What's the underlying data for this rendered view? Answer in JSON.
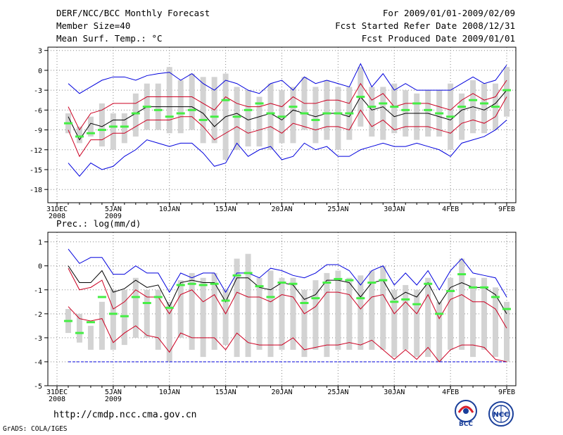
{
  "header": {
    "title": "DERF/NCC/BCC Monthly Forecast",
    "member_size": "Member Size=40",
    "period": "For 2009/01/01-2009/02/09",
    "fcst_started": "Fcst Started Refer Date 2008/12/31",
    "fcst_produced": "Fcst Produced Date 2009/01/01"
  },
  "footer": {
    "url": "http://cmdp.ncc.cma.gov.cn",
    "credit": "GrADS: COLA/IGES",
    "logo_left_text": "BCC",
    "logo_right_text": "NCC"
  },
  "colors": {
    "bar": "#d3d3d3",
    "green": "#44ee44",
    "blue": "#0000dd",
    "red": "#cc0022",
    "black": "#000000",
    "dash": "#0000dd"
  },
  "chart_data": [
    {
      "type": "line",
      "title": "Mean Surf. Temp.: °C",
      "x_tick_labels": [
        "31DEC",
        "5JAN",
        "10JAN",
        "15JAN",
        "20JAN",
        "25JAN",
        "30JAN",
        "4FEB",
        "9FEB"
      ],
      "x_tick_days": [
        0,
        5,
        10,
        15,
        20,
        25,
        30,
        35,
        40
      ],
      "x_sublabels": {
        "0": "2008",
        "5": "2009"
      },
      "ylim": [
        -20,
        3.5
      ],
      "yticks": [
        3,
        0,
        -3,
        -6,
        -9,
        -12,
        -15,
        -18
      ],
      "days": [
        1,
        2,
        3,
        4,
        5,
        6,
        7,
        8,
        9,
        10,
        11,
        12,
        13,
        14,
        15,
        16,
        17,
        18,
        19,
        20,
        21,
        22,
        23,
        24,
        25,
        26,
        27,
        28,
        29,
        30,
        31,
        32,
        33,
        34,
        35,
        36,
        37,
        38,
        39,
        40
      ],
      "box_top": [
        -6.5,
        -8.5,
        -7,
        -5,
        -6.5,
        -6.5,
        -3.5,
        -2,
        -2,
        0.5,
        -1.5,
        -0.5,
        -1,
        -1,
        -0.5,
        -2.5,
        -3,
        -4,
        -2,
        -3,
        -2.5,
        -1,
        -2.5,
        -1.5,
        -2.5,
        -2.5,
        0.5,
        -2.5,
        -2.5,
        -2,
        -3,
        -3.5,
        -3,
        -3,
        -2,
        -3.5,
        -1.5,
        -2,
        -2,
        0.5
      ],
      "box_bottom": [
        -9.5,
        -11,
        -10,
        -11.5,
        -12,
        -11,
        -10,
        -9,
        -9,
        -9.5,
        -9.5,
        -9,
        -11,
        -11,
        -13.5,
        -12,
        -11.5,
        -11.5,
        -12,
        -11,
        -11,
        -9,
        -11,
        -10.5,
        -12,
        -10.5,
        -8.5,
        -10,
        -10.5,
        -9.5,
        -10,
        -10.5,
        -10,
        -10,
        -12,
        -10.5,
        -9.5,
        -9.5,
        -9,
        -7
      ],
      "green": [
        -8,
        -10,
        -9.5,
        -9,
        -8.5,
        -8.5,
        -6.5,
        -5.5,
        -6,
        -7,
        -6.5,
        -6,
        -7.5,
        -7,
        -4.5,
        -7,
        -6,
        -5,
        -6.5,
        -7,
        -5.5,
        -6.5,
        -7.5,
        -6.5,
        -6.5,
        -6.5,
        -4,
        -5.5,
        -5,
        -5.5,
        -6,
        -5,
        -6,
        -6.5,
        -7,
        -5.5,
        -4.5,
        -5,
        -5.5,
        -3
      ],
      "blue_upper": [
        -2,
        -3.5,
        -2.5,
        -1.5,
        -1,
        -1,
        -1.5,
        -0.8,
        -0.5,
        -0.3,
        -1.5,
        -0.5,
        -2,
        -3,
        -1.5,
        -2,
        -3,
        -3.5,
        -2,
        -1.5,
        -3,
        -1,
        -2,
        -1.5,
        -2,
        -2.5,
        1,
        -2.5,
        -0.5,
        -3,
        -2,
        -3,
        -3,
        -3,
        -3,
        -2,
        -1,
        -2,
        -1.5,
        0.8
      ],
      "red_upper": [
        -5.5,
        -9,
        -6.5,
        -6,
        -5,
        -5,
        -5,
        -4,
        -4,
        -4,
        -4,
        -4,
        -5,
        -6,
        -4,
        -5,
        -5.5,
        -5.5,
        -5,
        -5.5,
        -4,
        -5,
        -5,
        -4.5,
        -4.5,
        -5,
        -2,
        -4.5,
        -3.5,
        -5.5,
        -5,
        -5,
        -5,
        -5.5,
        -6,
        -4.5,
        -3.5,
        -4.5,
        -4,
        -1.5
      ],
      "mean": [
        -7,
        -10.5,
        -8,
        -8.5,
        -7.5,
        -7.5,
        -6.5,
        -5.5,
        -5.5,
        -5.5,
        -5.5,
        -5.5,
        -6.5,
        -8.5,
        -7,
        -6.5,
        -7.5,
        -7,
        -6.5,
        -7.5,
        -6,
        -6.5,
        -7,
        -6.5,
        -6.5,
        -7,
        -4,
        -6,
        -5.5,
        -7,
        -6.5,
        -6.5,
        -6.5,
        -7,
        -7.5,
        -6,
        -5.5,
        -6,
        -5,
        -3
      ],
      "red_lower": [
        -9,
        -13,
        -10.5,
        -10.5,
        -9.5,
        -9.5,
        -8.5,
        -7.5,
        -7.5,
        -7.5,
        -7,
        -7,
        -8.5,
        -10.5,
        -9.5,
        -8.5,
        -9.5,
        -9,
        -8.5,
        -9.5,
        -8,
        -8.5,
        -9,
        -8.5,
        -8.5,
        -9,
        -6,
        -8.5,
        -7.5,
        -9,
        -8.5,
        -8.5,
        -8.5,
        -9,
        -9.5,
        -8,
        -7.5,
        -8,
        -7,
        -4
      ],
      "blue_lower": [
        -14,
        -16,
        -14,
        -15,
        -14.5,
        -13,
        -12,
        -10.5,
        -11,
        -11.5,
        -11,
        -11,
        -12.5,
        -14.5,
        -14,
        -11,
        -13,
        -12,
        -11.5,
        -13.5,
        -13,
        -11,
        -12,
        -11.5,
        -13,
        -13,
        -12,
        -11.5,
        -11,
        -11.5,
        -11.5,
        -11,
        -11.5,
        -12,
        -13,
        -11,
        -10.5,
        -10,
        -9,
        -7.5
      ]
    },
    {
      "type": "line",
      "title": "Prec.: log(mm/d)",
      "x_tick_labels": [
        "31DEC",
        "5JAN",
        "10JAN",
        "15JAN",
        "20JAN",
        "25JAN",
        "30JAN",
        "4FEB",
        "9FEB"
      ],
      "x_tick_days": [
        0,
        5,
        10,
        15,
        20,
        25,
        30,
        35,
        40
      ],
      "x_sublabels": {
        "0": "2008",
        "5": "2009"
      },
      "ylim": [
        -5,
        1.4
      ],
      "yticks": [
        1,
        0,
        -1,
        -2,
        -3,
        -4,
        -5
      ],
      "days": [
        1,
        2,
        3,
        4,
        5,
        6,
        7,
        8,
        9,
        10,
        11,
        12,
        13,
        14,
        15,
        16,
        17,
        18,
        19,
        20,
        21,
        22,
        23,
        24,
        25,
        26,
        27,
        28,
        29,
        30,
        31,
        32,
        33,
        34,
        35,
        36,
        37,
        38,
        39,
        40
      ],
      "box_top": [
        -1.8,
        -2,
        -2.5,
        -1.5,
        -1,
        -1,
        -0.5,
        -1,
        -1,
        -1.5,
        -0.6,
        -0.3,
        -0.5,
        -0.3,
        -1,
        0.3,
        0.5,
        -0.5,
        -0.2,
        -0.5,
        -0.5,
        -1,
        -0.6,
        -0.3,
        -0.2,
        -0.5,
        -0.4,
        -0.2,
        0,
        -1,
        -0.8,
        -1,
        -0.5,
        -1.5,
        -0.5,
        0.3,
        -0.5,
        -0.5,
        -0.9,
        -1.5
      ],
      "box_bottom": [
        -2.8,
        -3.2,
        -3.5,
        -3.5,
        -3.5,
        -3.3,
        -3,
        -3,
        -3.5,
        -4,
        -3,
        -3.5,
        -3.8,
        -3.5,
        -3.3,
        -3.8,
        -3.8,
        -3.5,
        -3.8,
        -3.5,
        -3.5,
        -3.8,
        -3.5,
        -3.8,
        -3.5,
        -3.5,
        -3.5,
        -3.5,
        -3.5,
        -3.8,
        -3.5,
        -3.8,
        -3.8,
        -4,
        -3.5,
        -3.5,
        -3.8,
        -3.5,
        -3.8,
        -4
      ],
      "green": [
        -2.3,
        -2.8,
        -2.35,
        -1.3,
        -2,
        -2.1,
        -1.3,
        -1.55,
        -1.3,
        -1.75,
        -0.8,
        -0.75,
        -0.8,
        -0.75,
        -1.45,
        -0.4,
        -0.3,
        -0.85,
        -1.3,
        -0.7,
        -0.75,
        -1.55,
        -1.35,
        -0.7,
        -0.55,
        -0.6,
        -1.35,
        -0.7,
        -0.6,
        -1.5,
        -1.4,
        -1.6,
        -0.75,
        -2,
        -1.05,
        -0.35,
        -0.9,
        -0.9,
        -1.3,
        -1.8
      ],
      "blue_upper": [
        0.7,
        0.1,
        0.35,
        0.35,
        -0.35,
        -0.35,
        0,
        -0.3,
        -0.3,
        -1.1,
        -0.3,
        -0.5,
        -0.3,
        -0.3,
        -1.1,
        -0.3,
        -0.3,
        -0.5,
        -0.1,
        -0.2,
        -0.4,
        -0.5,
        -0.3,
        0.05,
        0.05,
        -0.2,
        -0.8,
        -0.2,
        0,
        -0.8,
        -0.3,
        -0.8,
        -0.2,
        -1,
        -0.2,
        0.3,
        -0.3,
        -0.4,
        -0.5,
        -1.3
      ],
      "red_upper": [
        -0.1,
        -1,
        -0.9,
        -0.6,
        -1.8,
        -1.5,
        -1,
        -1.3,
        -1.3,
        -2,
        -1.2,
        -1,
        -1.5,
        -1.2,
        -2,
        -1.1,
        -1.3,
        -1.3,
        -1.5,
        -1.2,
        -1.3,
        -2,
        -1.7,
        -1.1,
        -1.1,
        -1.2,
        -1.8,
        -1.3,
        -1.2,
        -2,
        -1.5,
        -2,
        -1.2,
        -2.2,
        -1.4,
        -1.2,
        -1.5,
        -1.5,
        -1.8,
        -2.6
      ],
      "mean": [
        0,
        -0.7,
        -0.7,
        -0.2,
        -1.1,
        -0.95,
        -0.6,
        -0.9,
        -0.8,
        -1.7,
        -0.7,
        -0.6,
        -0.7,
        -0.7,
        -1.5,
        -0.5,
        -0.5,
        -0.9,
        -1,
        -0.7,
        -0.8,
        -1.4,
        -1.2,
        -0.6,
        -0.6,
        -0.7,
        -1.3,
        -0.7,
        -0.6,
        -1.4,
        -1.1,
        -1.3,
        -0.7,
        -1.6,
        -0.9,
        -0.7,
        -0.9,
        -0.9,
        -1.2,
        -2
      ],
      "red_lower": [
        -1.7,
        -2.2,
        -2.3,
        -2.2,
        -3.2,
        -2.8,
        -2.5,
        -2.9,
        -3,
        -3.6,
        -2.8,
        -3,
        -3,
        -3,
        -3.5,
        -2.8,
        -3.2,
        -3.3,
        -3.3,
        -3.3,
        -3,
        -3.5,
        -3.4,
        -3.3,
        -3.3,
        -3.2,
        -3.3,
        -3.1,
        -3.5,
        -3.9,
        -3.5,
        -3.9,
        -3.4,
        -4,
        -3.5,
        -3.3,
        -3.3,
        -3.4,
        -3.9,
        -4
      ],
      "blue_lower": [
        -3.6,
        -4,
        -4,
        -4,
        -3.9,
        -4,
        -4,
        -4,
        -4,
        -4,
        -4,
        -4,
        -4,
        -4,
        -4,
        -4,
        -4,
        -4,
        -4,
        -4,
        -4,
        -4,
        -4,
        -4,
        -4,
        -4,
        -4,
        -4,
        -4,
        -4,
        -4,
        -4,
        -4,
        -4,
        -4,
        -4,
        -4,
        -4,
        -4,
        -4
      ],
      "dashed_level": -4
    }
  ]
}
